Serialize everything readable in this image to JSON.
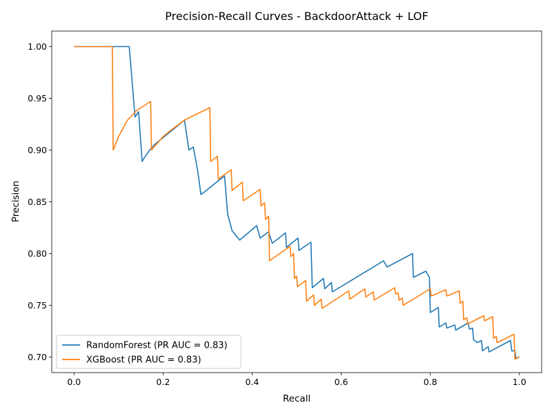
{
  "chart_data": {
    "type": "line",
    "title": "Precision-Recall Curves - BackdoorAttack + LOF",
    "xlabel": "Recall",
    "ylabel": "Precision",
    "xlim": [
      -0.05,
      1.05
    ],
    "ylim": [
      0.685,
      1.015
    ],
    "xticks": [
      0.0,
      0.2,
      0.4,
      0.6,
      0.8,
      1.0
    ],
    "xtick_labels": [
      "0.0",
      "0.2",
      "0.4",
      "0.6",
      "0.8",
      "1.0"
    ],
    "yticks": [
      0.7,
      0.75,
      0.8,
      0.85,
      0.9,
      0.95,
      1.0
    ],
    "ytick_labels": [
      "0.70",
      "0.75",
      "0.80",
      "0.85",
      "0.90",
      "0.95",
      "1.00"
    ],
    "grid": false,
    "legend_position": "lower-left",
    "series": [
      {
        "name": "RandomForest (PR AUC = 0.83)",
        "color": "#1f77b4",
        "points": [
          [
            0.0,
            1.0
          ],
          [
            0.124,
            1.0
          ],
          [
            0.137,
            0.932
          ],
          [
            0.145,
            0.937
          ],
          [
            0.153,
            0.889
          ],
          [
            0.16,
            0.894
          ],
          [
            0.17,
            0.9
          ],
          [
            0.18,
            0.905
          ],
          [
            0.2,
            0.912
          ],
          [
            0.22,
            0.919
          ],
          [
            0.248,
            0.929
          ],
          [
            0.258,
            0.9
          ],
          [
            0.268,
            0.903
          ],
          [
            0.278,
            0.879
          ],
          [
            0.285,
            0.857
          ],
          [
            0.3,
            0.862
          ],
          [
            0.32,
            0.869
          ],
          [
            0.338,
            0.875
          ],
          [
            0.345,
            0.838
          ],
          [
            0.355,
            0.822
          ],
          [
            0.372,
            0.813
          ],
          [
            0.41,
            0.827
          ],
          [
            0.418,
            0.815
          ],
          [
            0.437,
            0.821
          ],
          [
            0.445,
            0.81
          ],
          [
            0.475,
            0.82
          ],
          [
            0.477,
            0.806
          ],
          [
            0.503,
            0.815
          ],
          [
            0.505,
            0.803
          ],
          [
            0.532,
            0.811
          ],
          [
            0.535,
            0.767
          ],
          [
            0.56,
            0.776
          ],
          [
            0.563,
            0.766
          ],
          [
            0.578,
            0.772
          ],
          [
            0.58,
            0.763
          ],
          [
            0.695,
            0.793
          ],
          [
            0.703,
            0.787
          ],
          [
            0.76,
            0.8
          ],
          [
            0.762,
            0.777
          ],
          [
            0.79,
            0.783
          ],
          [
            0.798,
            0.777
          ],
          [
            0.8,
            0.743
          ],
          [
            0.818,
            0.748
          ],
          [
            0.82,
            0.729
          ],
          [
            0.835,
            0.733
          ],
          [
            0.837,
            0.728
          ],
          [
            0.855,
            0.731
          ],
          [
            0.857,
            0.726
          ],
          [
            0.885,
            0.733
          ],
          [
            0.888,
            0.727
          ],
          [
            0.895,
            0.728
          ],
          [
            0.897,
            0.717
          ],
          [
            0.905,
            0.714
          ],
          [
            0.915,
            0.716
          ],
          [
            0.917,
            0.706
          ],
          [
            0.93,
            0.71
          ],
          [
            0.932,
            0.705
          ],
          [
            0.98,
            0.716
          ],
          [
            0.983,
            0.706
          ],
          [
            0.99,
            0.706
          ],
          [
            0.992,
            0.699
          ],
          [
            1.0,
            0.7
          ]
        ]
      },
      {
        "name": "XGBoost (PR AUC = 0.83)",
        "color": "#ff7f0e",
        "points": [
          [
            0.0,
            1.0
          ],
          [
            0.086,
            1.0
          ],
          [
            0.088,
            0.9
          ],
          [
            0.1,
            0.913
          ],
          [
            0.12,
            0.929
          ],
          [
            0.14,
            0.938
          ],
          [
            0.172,
            0.947
          ],
          [
            0.174,
            0.9
          ],
          [
            0.2,
            0.913
          ],
          [
            0.22,
            0.92
          ],
          [
            0.248,
            0.929
          ],
          [
            0.305,
            0.941
          ],
          [
            0.307,
            0.889
          ],
          [
            0.322,
            0.894
          ],
          [
            0.324,
            0.872
          ],
          [
            0.353,
            0.881
          ],
          [
            0.355,
            0.861
          ],
          [
            0.378,
            0.869
          ],
          [
            0.38,
            0.851
          ],
          [
            0.418,
            0.862
          ],
          [
            0.42,
            0.846
          ],
          [
            0.428,
            0.849
          ],
          [
            0.43,
            0.833
          ],
          [
            0.437,
            0.836
          ],
          [
            0.439,
            0.793
          ],
          [
            0.485,
            0.807
          ],
          [
            0.487,
            0.797
          ],
          [
            0.493,
            0.8
          ],
          [
            0.495,
            0.776
          ],
          [
            0.5,
            0.778
          ],
          [
            0.502,
            0.768
          ],
          [
            0.52,
            0.774
          ],
          [
            0.522,
            0.754
          ],
          [
            0.538,
            0.76
          ],
          [
            0.54,
            0.75
          ],
          [
            0.555,
            0.756
          ],
          [
            0.557,
            0.747
          ],
          [
            0.617,
            0.764
          ],
          [
            0.619,
            0.756
          ],
          [
            0.653,
            0.766
          ],
          [
            0.655,
            0.758
          ],
          [
            0.672,
            0.763
          ],
          [
            0.674,
            0.755
          ],
          [
            0.72,
            0.767
          ],
          [
            0.722,
            0.761
          ],
          [
            0.728,
            0.762
          ],
          [
            0.73,
            0.755
          ],
          [
            0.737,
            0.757
          ],
          [
            0.739,
            0.75
          ],
          [
            0.8,
            0.766
          ],
          [
            0.802,
            0.759
          ],
          [
            0.835,
            0.765
          ],
          [
            0.837,
            0.759
          ],
          [
            0.865,
            0.764
          ],
          [
            0.867,
            0.752
          ],
          [
            0.873,
            0.754
          ],
          [
            0.875,
            0.736
          ],
          [
            0.882,
            0.738
          ],
          [
            0.884,
            0.732
          ],
          [
            0.92,
            0.74
          ],
          [
            0.922,
            0.735
          ],
          [
            0.94,
            0.739
          ],
          [
            0.942,
            0.718
          ],
          [
            0.948,
            0.72
          ],
          [
            0.95,
            0.714
          ],
          [
            0.988,
            0.722
          ],
          [
            0.99,
            0.698
          ],
          [
            1.0,
            0.7
          ]
        ]
      }
    ]
  }
}
